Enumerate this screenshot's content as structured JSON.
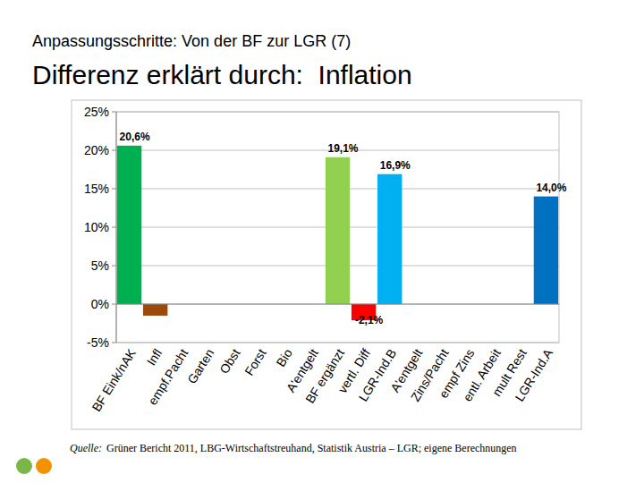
{
  "chart_data": {
    "type": "bar",
    "subtitle": "Anpassungsschritte: Von der BF zur LGR (7)",
    "title": "Differenz erklärt durch:  Inflation",
    "categories": [
      "BF Eink/nAK",
      "Infl",
      "empf.Pacht",
      "Garten",
      "Obst",
      "Forst",
      "Bio",
      "A'entgelt",
      "BF ergänzt",
      "vertl. Diff",
      "LGR-Ind.B",
      "A'entgelt",
      "Zins/Pacht",
      "empf Zins",
      "entl. Arbeit",
      "mult Rest",
      "LGR-Ind.A"
    ],
    "values": [
      20.6,
      -1.5,
      null,
      null,
      null,
      null,
      null,
      null,
      19.1,
      -2.1,
      16.9,
      null,
      null,
      null,
      null,
      null,
      14.0
    ],
    "value_labels": [
      "20,6%",
      null,
      null,
      null,
      null,
      null,
      null,
      null,
      "19,1%",
      "-2,1%",
      "16,9%",
      null,
      null,
      null,
      null,
      null,
      "14,0%"
    ],
    "colors": [
      "#00b050",
      "#9c4a0c",
      null,
      null,
      null,
      null,
      null,
      null,
      "#92d050",
      "#ff0000",
      "#00b0f0",
      null,
      null,
      null,
      null,
      null,
      "#0070c0"
    ],
    "data_labels": true,
    "ylim": [
      -5,
      25
    ],
    "yticks": [
      {
        "value": -5,
        "label": "-5%"
      },
      {
        "value": 0,
        "label": "0%"
      },
      {
        "value": 5,
        "label": "5%"
      },
      {
        "value": 10,
        "label": "10%"
      },
      {
        "value": 15,
        "label": "15%"
      },
      {
        "value": 20,
        "label": "20%"
      },
      {
        "value": 25,
        "label": "25%"
      }
    ],
    "grid": true,
    "source": {
      "label": "Quelle:",
      "text": "Grüner Bericht 2011, LBG-Wirtschaftstreuhand, Statistik Austria – LGR; eigene Berechnungen"
    }
  }
}
